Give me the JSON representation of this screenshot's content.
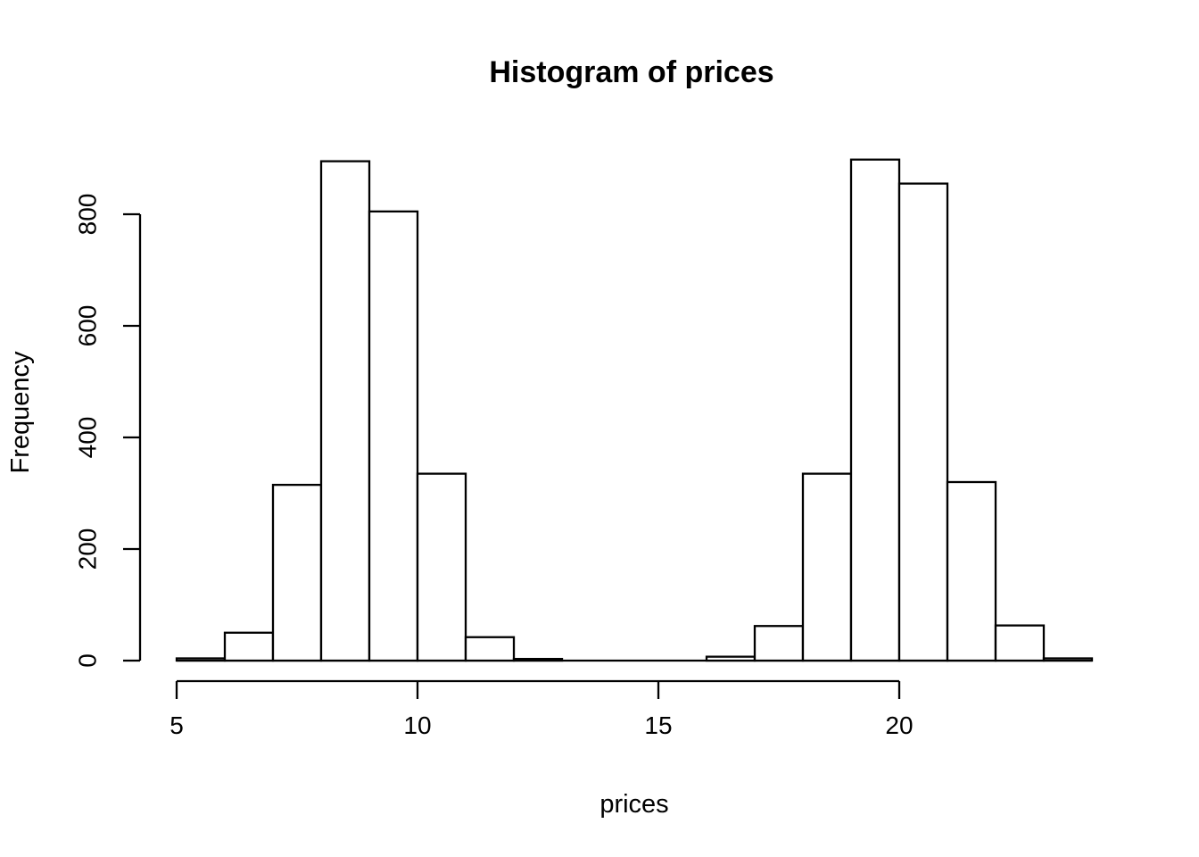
{
  "chart_data": {
    "type": "bar",
    "subtype": "histogram",
    "title": "Histogram of prices",
    "xlabel": "prices",
    "ylabel": "Frequency",
    "bin_width": 1,
    "bin_left_edges": [
      5,
      6,
      7,
      8,
      9,
      10,
      11,
      12,
      13,
      14,
      15,
      16,
      17,
      18,
      19,
      20,
      21,
      22,
      23
    ],
    "values": [
      4,
      50,
      315,
      895,
      805,
      335,
      42,
      3,
      0,
      0,
      0,
      7,
      62,
      335,
      898,
      855,
      320,
      63,
      4
    ],
    "x_ticks": [
      5,
      10,
      15,
      20
    ],
    "y_ticks": [
      0,
      200,
      400,
      600,
      800
    ],
    "xlim": [
      5,
      24
    ],
    "ylim": [
      0,
      900
    ],
    "grid": false,
    "legend": "none",
    "bar_fill": "#ffffff",
    "stroke_color": "#000000",
    "background": "#ffffff"
  }
}
